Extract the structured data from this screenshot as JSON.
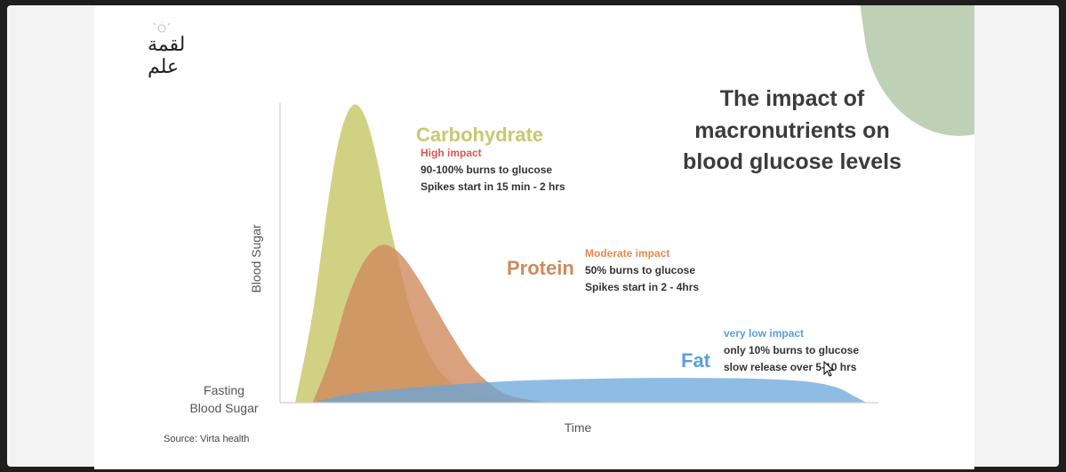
{
  "logo": {
    "text": "لقمة علم"
  },
  "slide": {
    "title_lines": [
      "The impact of",
      "macronutrients on",
      "blood glucose levels"
    ],
    "source": "Source: Virta health"
  },
  "colors": {
    "carbohydrate": "#c2c25a",
    "protein": "#cf8a5d",
    "fat": "#6aa5d8",
    "carb_label": "#c8c870",
    "high_impact": "#e0554f",
    "moderate_impact": "#e58a4e",
    "low_impact": "#5aa0dc",
    "leaf": "#b7ccae"
  },
  "chart_data": {
    "type": "area",
    "title": "",
    "xlabel": "Time",
    "ylabel": "Blood Sugar",
    "baseline_label_lines": [
      "Fasting",
      "Blood Sugar"
    ],
    "x_range": [
      0,
      100
    ],
    "y_range": [
      0,
      100
    ],
    "grid": false,
    "series": [
      {
        "name": "Carbohydrate",
        "impact": "High impact",
        "details": [
          "90-100% burns to glucose",
          "Spikes start in 15 min - 2 hrs"
        ],
        "x": [
          0,
          3,
          6,
          8,
          10,
          12,
          14,
          16,
          18,
          20,
          23,
          26,
          30,
          35,
          42,
          50
        ],
        "y": [
          0,
          30,
          72,
          92,
          100,
          96,
          82,
          62,
          45,
          30,
          16,
          8,
          3,
          1,
          0,
          0
        ]
      },
      {
        "name": "Protein",
        "impact": "Moderate impact",
        "details": [
          "50% burns to glucose",
          "Spikes start in 2 - 4hrs"
        ],
        "x": [
          3,
          6,
          9,
          12,
          15,
          18,
          21,
          24,
          27,
          30,
          33,
          36,
          40,
          45,
          50
        ],
        "y": [
          0,
          15,
          35,
          48,
          53,
          50,
          42,
          32,
          22,
          13,
          7,
          3,
          1,
          0,
          0
        ]
      },
      {
        "name": "Fat",
        "impact": "very low impact",
        "details": [
          "only 10% burns to glucose",
          "slow release over 5-10 hrs"
        ],
        "x": [
          3,
          10,
          20,
          30,
          40,
          50,
          60,
          70,
          80,
          88,
          93,
          96,
          98
        ],
        "y": [
          0,
          3,
          5,
          6.5,
          7.5,
          8,
          8.3,
          8.3,
          8,
          7,
          5,
          2,
          0
        ]
      }
    ]
  }
}
